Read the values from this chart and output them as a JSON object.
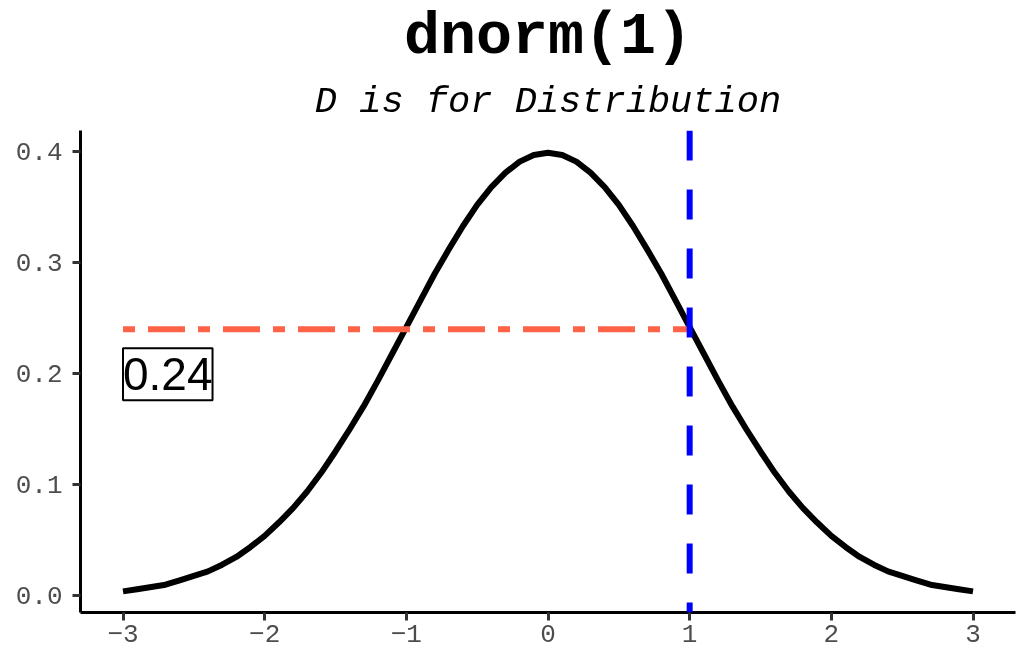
{
  "chart_data": {
    "type": "line",
    "title": "dnorm(1)",
    "subtitle": "D is for Distribution",
    "x": [
      -3,
      -2.9,
      -2.8,
      -2.7,
      -2.6,
      -2.5,
      -2.4,
      -2.3,
      -2.2,
      -2.1,
      -2,
      -1.9,
      -1.8,
      -1.7,
      -1.6,
      -1.5,
      -1.4,
      -1.3,
      -1.2,
      -1.1,
      -1,
      -0.9,
      -0.8,
      -0.7,
      -0.6,
      -0.5,
      -0.4,
      -0.3,
      -0.2,
      -0.1,
      0,
      0.1,
      0.2,
      0.3,
      0.4,
      0.5,
      0.6,
      0.7,
      0.8,
      0.9,
      1,
      1.1,
      1.2,
      1.3,
      1.4,
      1.5,
      1.6,
      1.7,
      1.8,
      1.9,
      2,
      2.1,
      2.2,
      2.3,
      2.4,
      2.5,
      2.6,
      2.7,
      2.8,
      2.9,
      3
    ],
    "series": [
      {
        "color": "#000000",
        "values": [
          0.004,
          0.006,
          0.008,
          0.01,
          0.014,
          0.018,
          0.022,
          0.028,
          0.035,
          0.044,
          0.054,
          0.066,
          0.079,
          0.094,
          0.111,
          0.13,
          0.15,
          0.171,
          0.194,
          0.218,
          0.242,
          0.266,
          0.29,
          0.312,
          0.333,
          0.352,
          0.368,
          0.381,
          0.391,
          0.397,
          0.399,
          0.397,
          0.391,
          0.381,
          0.368,
          0.352,
          0.333,
          0.312,
          0.29,
          0.266,
          0.242,
          0.218,
          0.194,
          0.171,
          0.15,
          0.13,
          0.111,
          0.094,
          0.079,
          0.066,
          0.054,
          0.044,
          0.035,
          0.028,
          0.022,
          0.018,
          0.014,
          0.01,
          0.008,
          0.006,
          0.004
        ]
      },
      {
        "type": "line",
        "color": "#ff6347",
        "x": [
          -3,
          1
        ],
        "values": [
          0.24,
          0.24
        ],
        "value_labels": [
          "0.24",
          null
        ],
        "line_style": "dashdot"
      }
    ],
    "ref_lines": [
      {
        "axis": "x",
        "value": 1,
        "color": "#0000ff",
        "line_style": "dashed"
      }
    ],
    "xlim": [
      -3.3,
      3.3
    ],
    "ylim": [
      -0.015,
      0.419
    ],
    "xticks": [
      {
        "value": -3,
        "label": "−3"
      },
      {
        "value": -2,
        "label": "−2"
      },
      {
        "value": -1,
        "label": "−1"
      },
      0,
      1,
      2,
      3
    ],
    "yticks": [
      {
        "value": 0,
        "label": "0.0"
      },
      0.1,
      0.2,
      0.3,
      0.4
    ]
  }
}
